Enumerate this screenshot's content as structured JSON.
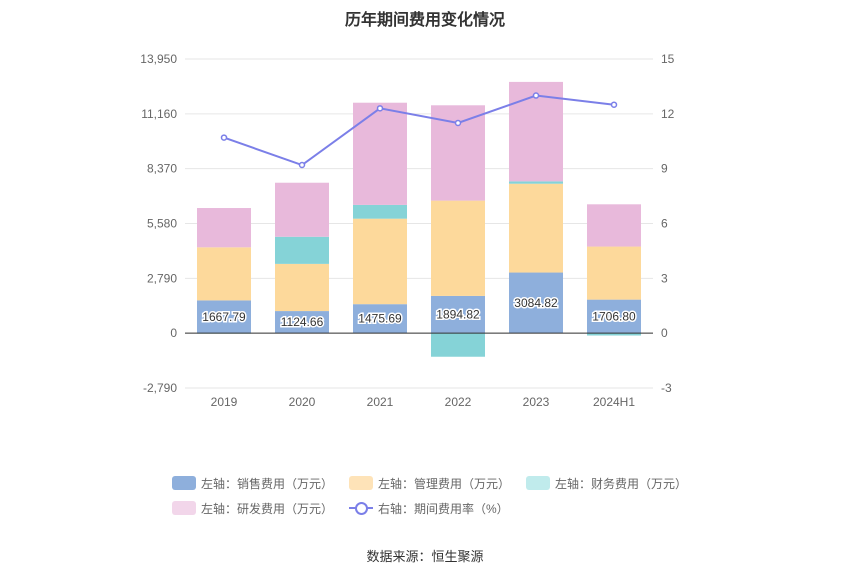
{
  "chart_data": {
    "type": "bar",
    "title": "历年期间费用变化情况",
    "categories": [
      "2019",
      "2020",
      "2021",
      "2022",
      "2023",
      "2024H1"
    ],
    "left_axis": {
      "ticks": [
        "13,950",
        "11,160",
        "8,370",
        "5,580",
        "2,790",
        "0",
        "-2,790"
      ],
      "ylim": [
        -2790,
        13950
      ]
    },
    "right_axis": {
      "ticks": [
        "15",
        "12",
        "9",
        "6",
        "3",
        "0",
        "-3"
      ],
      "ylim": [
        -3,
        15
      ]
    },
    "grid": true,
    "legend_position": "bottom",
    "series": [
      {
        "name": "左轴：销售费用（万元）",
        "color": "#8eafdc",
        "stack": true,
        "values": [
          1667.79,
          1124.66,
          1475.69,
          1894.82,
          3084.82,
          1706.8
        ],
        "labels": [
          "1667.79",
          "1124.66",
          "1475.69",
          "1894.82",
          "3084.82",
          "1706.80"
        ]
      },
      {
        "name": "左轴：管理费用（万元）",
        "color": "#fdd99b",
        "stack": true,
        "values": [
          2700,
          2400,
          4350,
          4850,
          4520,
          2700
        ]
      },
      {
        "name": "左轴：财务费用（万元）",
        "color": "#85d3d7",
        "stack": true,
        "values": [
          -20,
          1380,
          700,
          -1200,
          120,
          -120
        ]
      },
      {
        "name": "左轴：研发费用（万元）",
        "color": "#e8b9db",
        "stack": true,
        "values": [
          2000,
          2750,
          5200,
          4850,
          5060,
          2150
        ]
      },
      {
        "name": "右轴：期间费用率（%）",
        "color": "#7b7fe8",
        "type": "line",
        "axis": "right",
        "values": [
          10.7,
          9.2,
          12.3,
          11.5,
          13.0,
          12.5
        ]
      }
    ],
    "legend_colors": [
      "#8eafdc",
      "#fee3b8",
      "#c0ebec",
      "#f2d6ea"
    ]
  },
  "source": "数据来源：恒生聚源"
}
